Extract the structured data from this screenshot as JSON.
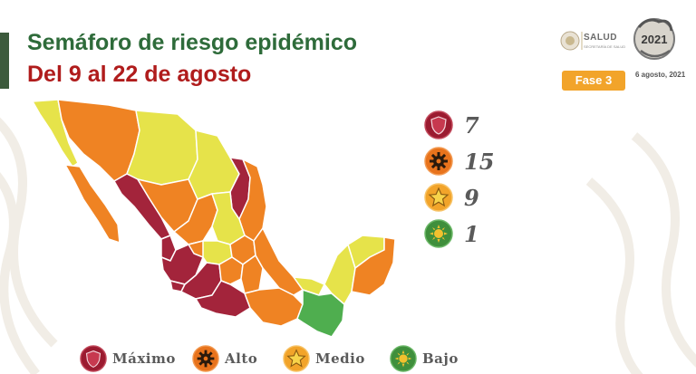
{
  "header": {
    "title": "Semáforo de riesgo epidémico",
    "subtitle": "Del 9 al 22 de agosto"
  },
  "branding": {
    "salud_name": "SALUD",
    "salud_tagline": "SECRETARÍA DE SALUD",
    "phase_badge": "Fase 3",
    "date_note": "6 agosto, 2021",
    "year_seal_text": "2021"
  },
  "counts": [
    {
      "level": "maximo",
      "value": "7",
      "color": "#9b1b30",
      "icon": "shield-icon"
    },
    {
      "level": "alto",
      "value": "15",
      "color": "#e8731c",
      "icon": "gear-icon"
    },
    {
      "level": "medio",
      "value": "9",
      "color": "#f2a42a",
      "icon": "star-icon"
    },
    {
      "level": "bajo",
      "value": "1",
      "color": "#4fa84a",
      "icon": "sun-icon"
    }
  ],
  "legend": [
    {
      "label": "Máximo",
      "color": "#9b1b30",
      "icon": "shield-icon"
    },
    {
      "label": "Alto",
      "color": "#e8731c",
      "icon": "gear-icon"
    },
    {
      "label": "Medio",
      "color": "#f2a42a",
      "icon": "star-icon"
    },
    {
      "label": "Bajo",
      "color": "#4fa84a",
      "icon": "sun-icon"
    }
  ],
  "colors": {
    "maximo": "#a3243b",
    "alto": "#ef8323",
    "medio": "#e6e34a",
    "bajo": "#4fae4f",
    "title_green": "#2e6b3a",
    "subtitle_red": "#b01c1c"
  }
}
